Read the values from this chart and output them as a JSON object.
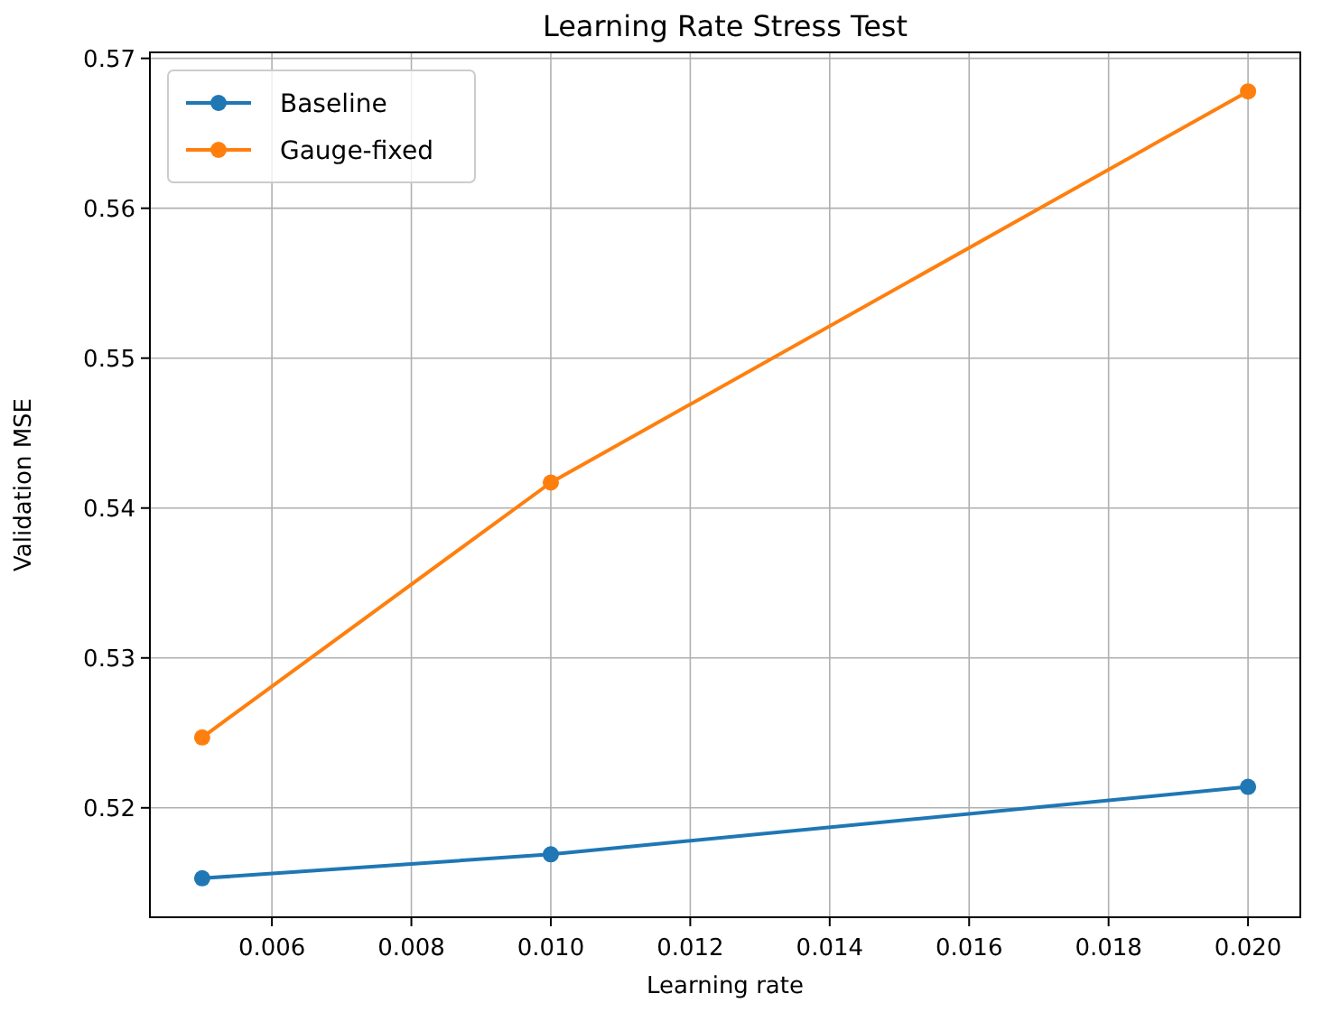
{
  "chart_data": {
    "type": "line",
    "title": "Learning Rate Stress Test",
    "xlabel": "Learning rate",
    "ylabel": "Validation MSE",
    "x": [
      0.005,
      0.01,
      0.02
    ],
    "series": [
      {
        "name": "Baseline",
        "color": "#1f77b4",
        "values": [
          0.5153,
          0.5169,
          0.5214
        ]
      },
      {
        "name": "Gauge-fixed",
        "color": "#ff7f0e",
        "values": [
          0.5247,
          0.5417,
          0.5678
        ]
      }
    ],
    "xlim": [
      0.00425,
      0.02075
    ],
    "xticks": [
      0.006,
      0.008,
      {
        "value": 0.01,
        "label": "0.010"
      },
      0.012,
      0.014,
      0.016,
      0.018,
      {
        "value": 0.02,
        "label": "0.020"
      }
    ],
    "ylim": [
      0.5127,
      0.5704
    ],
    "yticks": [
      0.52,
      0.53,
      0.54,
      0.55,
      0.56,
      0.57
    ],
    "grid": true,
    "legend": "top left",
    "marker": "circle",
    "line_style": "solid"
  }
}
